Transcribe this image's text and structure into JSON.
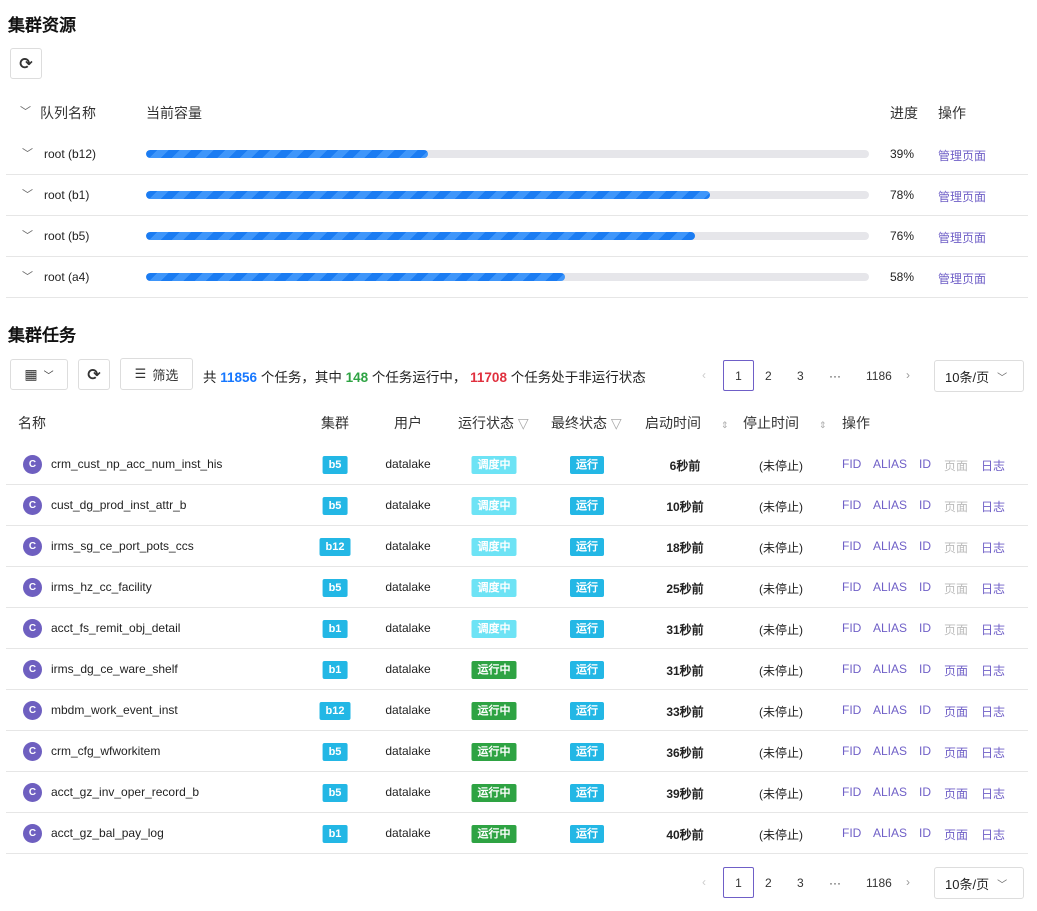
{
  "resources": {
    "title": "集群资源",
    "refresh_icon": "refresh-icon",
    "headers": {
      "name": "队列名称",
      "capacity": "当前容量",
      "progress": "进度",
      "action": "操作"
    },
    "queues": [
      {
        "name": "root (b12)",
        "progress": 39,
        "progress_label": "39%",
        "action": "管理页面"
      },
      {
        "name": "root (b1)",
        "progress": 78,
        "progress_label": "78%",
        "action": "管理页面"
      },
      {
        "name": "root (b5)",
        "progress": 76,
        "progress_label": "76%",
        "action": "管理页面"
      },
      {
        "name": "root (a4)",
        "progress": 58,
        "progress_label": "58%",
        "action": "管理页面"
      }
    ]
  },
  "tasks": {
    "title": "集群任务",
    "filter_label": "筛选",
    "summary": {
      "p1": "共",
      "total": "11856",
      "p2": "个任务，其中",
      "running": "148",
      "p3": "个任务运行中，",
      "stopped": "11708",
      "p4": "个任务处于非运行状态"
    },
    "colors": {
      "total": "#1677ff",
      "running": "#2ea343",
      "stopped": "#e0303e",
      "accent": "#6f5fc7"
    },
    "headers": {
      "name": "名称",
      "cluster": "集群",
      "user": "用户",
      "run_state": "运行状态",
      "final_state": "最终状态",
      "start": "启动时间",
      "stop": "停止时间",
      "action": "操作"
    },
    "ops": [
      "FID",
      "ALIAS",
      "ID",
      "页面",
      "日志"
    ],
    "rows": [
      {
        "name": "crm_cust_np_acc_num_inst_his",
        "cluster": "b5",
        "user": "datalake",
        "run": "调度中",
        "final": "运行",
        "start": "6秒前",
        "stop": "(未停止)",
        "page_enabled": false
      },
      {
        "name": "cust_dg_prod_inst_attr_b",
        "cluster": "b5",
        "user": "datalake",
        "run": "调度中",
        "final": "运行",
        "start": "10秒前",
        "stop": "(未停止)",
        "page_enabled": false
      },
      {
        "name": "irms_sg_ce_port_pots_ccs",
        "cluster": "b12",
        "user": "datalake",
        "run": "调度中",
        "final": "运行",
        "start": "18秒前",
        "stop": "(未停止)",
        "page_enabled": false
      },
      {
        "name": "irms_hz_cc_facility",
        "cluster": "b5",
        "user": "datalake",
        "run": "调度中",
        "final": "运行",
        "start": "25秒前",
        "stop": "(未停止)",
        "page_enabled": false
      },
      {
        "name": "acct_fs_remit_obj_detail",
        "cluster": "b1",
        "user": "datalake",
        "run": "调度中",
        "final": "运行",
        "start": "31秒前",
        "stop": "(未停止)",
        "page_enabled": false
      },
      {
        "name": "irms_dg_ce_ware_shelf",
        "cluster": "b1",
        "user": "datalake",
        "run": "运行中",
        "final": "运行",
        "start": "31秒前",
        "stop": "(未停止)",
        "page_enabled": true
      },
      {
        "name": "mbdm_work_event_inst",
        "cluster": "b12",
        "user": "datalake",
        "run": "运行中",
        "final": "运行",
        "start": "33秒前",
        "stop": "(未停止)",
        "page_enabled": true
      },
      {
        "name": "crm_cfg_wfworkitem",
        "cluster": "b5",
        "user": "datalake",
        "run": "运行中",
        "final": "运行",
        "start": "36秒前",
        "stop": "(未停止)",
        "page_enabled": true
      },
      {
        "name": "acct_gz_inv_oper_record_b",
        "cluster": "b5",
        "user": "datalake",
        "run": "运行中",
        "final": "运行",
        "start": "39秒前",
        "stop": "(未停止)",
        "page_enabled": true
      },
      {
        "name": "acct_gz_bal_pay_log",
        "cluster": "b1",
        "user": "datalake",
        "run": "运行中",
        "final": "运行",
        "start": "40秒前",
        "stop": "(未停止)",
        "page_enabled": true
      }
    ],
    "pagination": {
      "pages": [
        "1",
        "2",
        "3",
        "···",
        "1186"
      ],
      "current": "1",
      "page_size": "10条/页"
    }
  }
}
